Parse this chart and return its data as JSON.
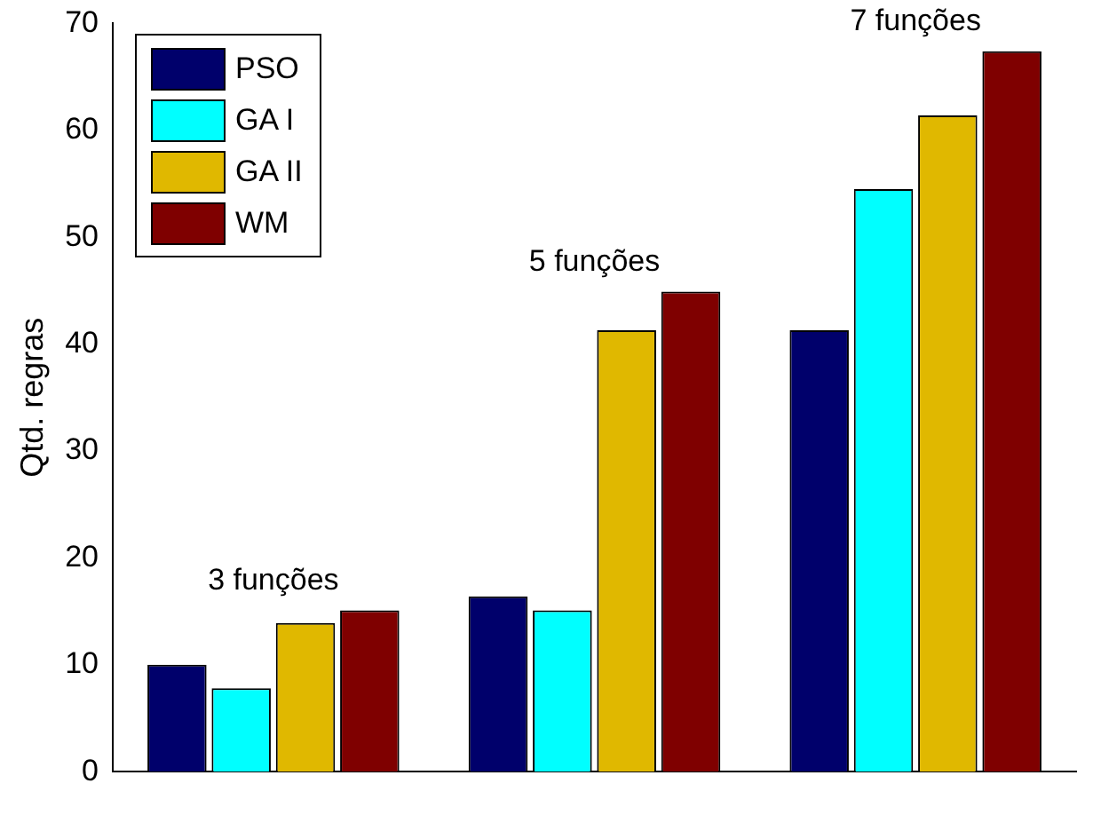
{
  "chart_data": {
    "type": "bar",
    "ylabel": "Qtd. regras",
    "categories": [
      null,
      null,
      null
    ],
    "series": [
      {
        "name": "PSO",
        "color": "#00006b",
        "values": [
          10,
          16.4,
          41.3
        ]
      },
      {
        "name": "GA I",
        "color": "#00ffff",
        "values": [
          7.8,
          15.1,
          54.5
        ]
      },
      {
        "name": "GA II",
        "color": "#e0b800",
        "values": [
          13.9,
          41.3,
          61.4
        ]
      },
      {
        "name": "WM",
        "color": "#7f0000",
        "values": [
          15.1,
          44.9,
          67.4
        ]
      }
    ],
    "ylim": [
      0,
      70
    ],
    "yticks": [
      0,
      10,
      20,
      30,
      40,
      50,
      60,
      70
    ],
    "grid": false,
    "legend": "top left",
    "annotations": [
      "3 funções",
      "5 funções",
      "7 funções"
    ]
  }
}
